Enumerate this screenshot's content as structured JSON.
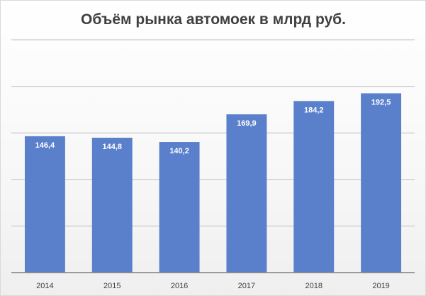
{
  "chart_data": {
    "type": "bar",
    "title": "Объём рынка автомоек в млрд руб.",
    "xlabel": "",
    "ylabel": "",
    "categories": [
      "2014",
      "2015",
      "2016",
      "2017",
      "2018",
      "2019"
    ],
    "values": [
      146.4,
      144.8,
      140.2,
      169.9,
      184.2,
      192.5
    ],
    "data_labels": [
      "146,4",
      "144,8",
      "140,2",
      "169,9",
      "184,2",
      "192,5"
    ],
    "ylim": [
      0,
      250
    ],
    "y_gridline_step": 50,
    "grid": true,
    "legend": "none",
    "colors": {
      "bar": "#5a80cc",
      "grid": "#bfbfbf",
      "axis": "#7f7f7f",
      "title": "#404040",
      "data_label": "#ffffff"
    }
  }
}
